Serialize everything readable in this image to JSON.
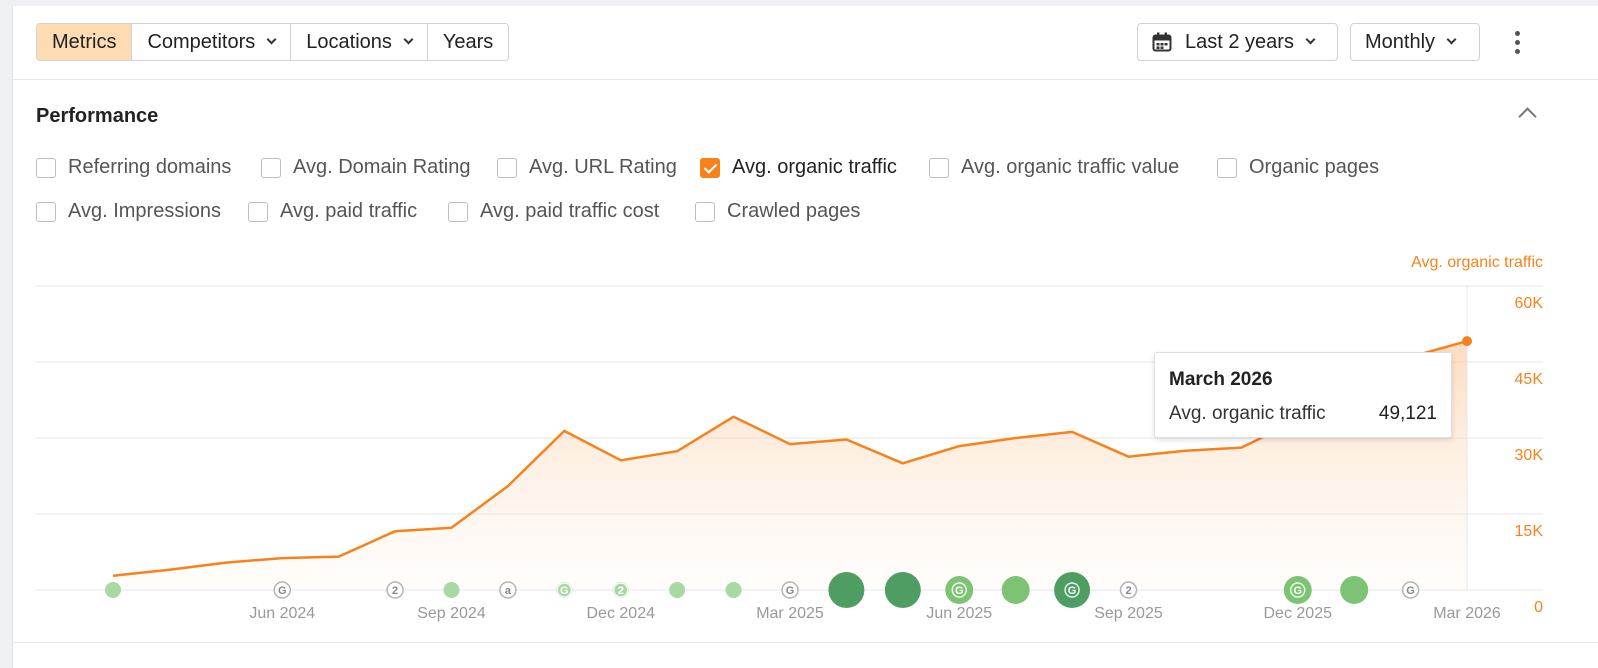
{
  "toolbar": {
    "tabs": [
      {
        "label": "Metrics",
        "active": true,
        "dropdown": false
      },
      {
        "label": "Competitors",
        "active": false,
        "dropdown": true
      },
      {
        "label": "Locations",
        "active": false,
        "dropdown": true
      },
      {
        "label": "Years",
        "active": false,
        "dropdown": false
      }
    ],
    "date_range": "Last 2 years",
    "interval": "Monthly",
    "calendar_icon": "calendar-icon",
    "more_icon": "kebab-icon"
  },
  "performance": {
    "title": "Performance",
    "collapse_icon": "chevron-up-icon",
    "metrics": [
      {
        "label": "Referring domains",
        "checked": false
      },
      {
        "label": "Avg. Domain Rating",
        "checked": false
      },
      {
        "label": "Avg. URL Rating",
        "checked": false
      },
      {
        "label": "Avg. organic traffic",
        "checked": true
      },
      {
        "label": "Avg. organic traffic value",
        "checked": false
      },
      {
        "label": "Organic pages",
        "checked": false
      },
      {
        "label": "Avg. Impressions",
        "checked": false
      },
      {
        "label": "Avg. paid traffic",
        "checked": false
      },
      {
        "label": "Avg. paid traffic cost",
        "checked": false
      },
      {
        "label": "Crawled pages",
        "checked": false
      }
    ]
  },
  "chart_data": {
    "type": "area",
    "axis_title": "Avg. organic traffic",
    "y_ticks": [
      "0",
      "15K",
      "30K",
      "45K",
      "60K"
    ],
    "ylim": [
      0,
      60000
    ],
    "x_ticks": [
      "Jun 2024",
      "Sep 2024",
      "Dec 2024",
      "Mar 2025",
      "Jun 2025",
      "Sep 2025",
      "Dec 2025",
      "Mar 2026"
    ],
    "x": [
      "Mar 2024",
      "Apr 2024",
      "May 2024",
      "Jun 2024",
      "Jul 2024",
      "Aug 2024",
      "Sep 2024",
      "Oct 2024",
      "Nov 2024",
      "Dec 2024",
      "Jan 2025",
      "Feb 2025",
      "Mar 2025",
      "Apr 2025",
      "May 2025",
      "Jun 2025",
      "Jul 2025",
      "Aug 2025",
      "Sep 2025",
      "Oct 2025",
      "Nov 2025",
      "Dec 2025",
      "Jan 2026",
      "Feb 2026",
      "Mar 2026"
    ],
    "series": [
      {
        "name": "Avg. organic traffic",
        "color": "#f7821b",
        "values": [
          2800,
          4000,
          5400,
          6300,
          6600,
          11600,
          12300,
          20500,
          31400,
          25600,
          27400,
          34200,
          28800,
          29700,
          25000,
          28400,
          30000,
          31200,
          26300,
          27500,
          28100,
          33500,
          43000,
          46000,
          49121
        ]
      }
    ],
    "grid": true,
    "tooltip": {
      "title": "March 2026",
      "label": "Avg. organic traffic",
      "value": "49,121"
    },
    "events": [
      {
        "x": "Mar 2024",
        "kind": "dot",
        "size": 1,
        "color": "#a8d9a5",
        "glyph": ""
      },
      {
        "x": "Jun 2024",
        "kind": "badge",
        "size": 1,
        "color": "#ffffff",
        "glyph": "G"
      },
      {
        "x": "Aug 2024",
        "kind": "badge",
        "size": 1,
        "color": "#ffffff",
        "glyph": "2"
      },
      {
        "x": "Sep 2024",
        "kind": "dot",
        "size": 1,
        "color": "#a8d9a5",
        "glyph": ""
      },
      {
        "x": "Oct 2024",
        "kind": "badge",
        "size": 1,
        "color": "#ffffff",
        "glyph": "a"
      },
      {
        "x": "Nov 2024",
        "kind": "badge",
        "size": 1,
        "color": "#a8d9a5",
        "glyph": "G"
      },
      {
        "x": "Dec 2024",
        "kind": "badge",
        "size": 1,
        "color": "#a8d9a5",
        "glyph": "2"
      },
      {
        "x": "Jan 2025",
        "kind": "dot",
        "size": 1,
        "color": "#a8d9a5",
        "glyph": ""
      },
      {
        "x": "Feb 2025",
        "kind": "dot",
        "size": 1,
        "color": "#a8d9a5",
        "glyph": ""
      },
      {
        "x": "Mar 2025",
        "kind": "badge",
        "size": 1,
        "color": "#ffffff",
        "glyph": "G"
      },
      {
        "x": "Apr 2025",
        "kind": "dot",
        "size": 3,
        "color": "#4e9e64",
        "glyph": ""
      },
      {
        "x": "May 2025",
        "kind": "dot",
        "size": 3,
        "color": "#4e9e64",
        "glyph": ""
      },
      {
        "x": "Jun 2025",
        "kind": "badge",
        "size": 2,
        "color": "#7cc474",
        "glyph": "G"
      },
      {
        "x": "Jul 2025",
        "kind": "dot",
        "size": 2,
        "color": "#7cc474",
        "glyph": ""
      },
      {
        "x": "Aug 2025",
        "kind": "badge",
        "size": 3,
        "color": "#4e9e64",
        "glyph": "G"
      },
      {
        "x": "Sep 2025",
        "kind": "badge",
        "size": 1,
        "color": "#ffffff",
        "glyph": "2"
      },
      {
        "x": "Dec 2025",
        "kind": "badge",
        "size": 2,
        "color": "#7cc474",
        "glyph": "G"
      },
      {
        "x": "Jan 2026",
        "kind": "dot",
        "size": 2,
        "color": "#7cc474",
        "glyph": ""
      },
      {
        "x": "Feb 2026",
        "kind": "badge",
        "size": 1,
        "color": "#ffffff",
        "glyph": "G"
      }
    ]
  }
}
